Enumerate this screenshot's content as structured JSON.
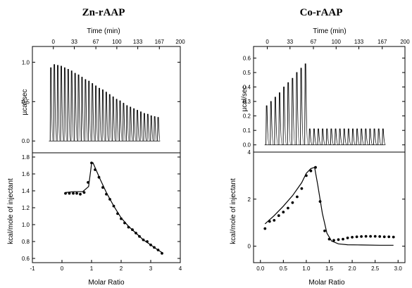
{
  "chart_data": [
    {
      "type": "line",
      "title": "Zn-rAAP",
      "top_panel": {
        "xlabel": "Time (min)",
        "ylabel": "µcal/sec",
        "xlim": [
          -33,
          200
        ],
        "ylim": [
          -0.15,
          1.2
        ],
        "xticks": [
          0,
          33,
          67,
          100,
          133,
          167,
          200
        ],
        "yticks": [
          0.0,
          0.5,
          1.0
        ],
        "ytick_labels": [
          "0.0",
          "0.5",
          "1.0"
        ],
        "injections": {
          "start_time": -5,
          "end_time": 164,
          "peak_heights": [
            0.93,
            0.97,
            0.96,
            0.95,
            0.93,
            0.91,
            0.89,
            0.86,
            0.84,
            0.81,
            0.78,
            0.76,
            0.73,
            0.7,
            0.67,
            0.65,
            0.62,
            0.59,
            0.56,
            0.53,
            0.51,
            0.48,
            0.45,
            0.43,
            0.41,
            0.39,
            0.37,
            0.35,
            0.34,
            0.32,
            0.31,
            0.3
          ]
        }
      },
      "bottom_panel": {
        "xlabel": "Molar Ratio",
        "ylabel": "kcal/mole of injectant",
        "xlim": [
          -1,
          4
        ],
        "ylim": [
          0.55,
          1.85
        ],
        "xticks": [
          -1,
          0,
          1,
          2,
          3,
          4
        ],
        "xtick_labels": [
          "-1",
          "0",
          "1",
          "2",
          "3",
          "4"
        ],
        "yticks": [
          0.6,
          0.8,
          1.0,
          1.2,
          1.4,
          1.6,
          1.8
        ],
        "ytick_labels": [
          "0.6",
          "0.8",
          "1.0",
          "1.2",
          "1.4",
          "1.6",
          "1.8"
        ],
        "points": {
          "x": [
            0.12,
            0.25,
            0.38,
            0.5,
            0.62,
            0.75,
            0.88,
            1.0,
            1.12,
            1.25,
            1.38,
            1.5,
            1.62,
            1.75,
            1.88,
            2.0,
            2.12,
            2.25,
            2.38,
            2.5,
            2.62,
            2.75,
            2.88,
            3.0,
            3.12,
            3.25,
            3.38
          ],
          "y": [
            1.37,
            1.37,
            1.37,
            1.37,
            1.36,
            1.38,
            1.5,
            1.73,
            1.65,
            1.56,
            1.44,
            1.36,
            1.3,
            1.22,
            1.13,
            1.07,
            1.02,
            0.97,
            0.94,
            0.9,
            0.86,
            0.82,
            0.8,
            0.76,
            0.73,
            0.7,
            0.66
          ]
        },
        "fit": {
          "x": [
            0.12,
            0.4,
            0.7,
            0.9,
            1.0,
            1.05,
            1.15,
            1.3,
            1.5,
            1.75,
            2.0,
            2.25,
            2.5,
            2.75,
            3.0,
            3.2,
            3.38
          ],
          "y": [
            1.38,
            1.39,
            1.39,
            1.45,
            1.72,
            1.73,
            1.65,
            1.53,
            1.38,
            1.22,
            1.08,
            0.98,
            0.9,
            0.82,
            0.76,
            0.71,
            0.67
          ]
        }
      }
    },
    {
      "type": "line",
      "title": "Co-rAAP",
      "top_panel": {
        "xlabel": "Time (min)",
        "ylabel": "µcal/sec",
        "xlim": [
          -20,
          200
        ],
        "ylim": [
          -0.05,
          0.68
        ],
        "xticks": [
          0,
          33,
          67,
          100,
          133,
          167,
          200
        ],
        "yticks": [
          0.0,
          0.1,
          0.2,
          0.3,
          0.4,
          0.5,
          0.6
        ],
        "ytick_labels": [
          "0.0",
          "0.1",
          "0.2",
          "0.3",
          "0.4",
          "0.5",
          "0.6"
        ],
        "injections": {
          "start_time": -2,
          "end_time": 167,
          "peak_heights": [
            0.27,
            0.3,
            0.33,
            0.36,
            0.4,
            0.43,
            0.46,
            0.5,
            0.53,
            0.56,
            0.11,
            0.11,
            0.11,
            0.11,
            0.11,
            0.11,
            0.11,
            0.11,
            0.11,
            0.11,
            0.11,
            0.11,
            0.11,
            0.11,
            0.11,
            0.11,
            0.11,
            0.11
          ]
        }
      },
      "bottom_panel": {
        "xlabel": "Molar Ratio",
        "ylabel": "kcal/mole of injectant",
        "xlim": [
          -0.15,
          3.15
        ],
        "ylim": [
          -0.7,
          4.0
        ],
        "xticks": [
          0.0,
          0.5,
          1.0,
          1.5,
          2.0,
          2.5,
          3.0
        ],
        "xtick_labels": [
          "0.0",
          "0.5",
          "1.0",
          "1.5",
          "2.0",
          "2.5",
          "3.0"
        ],
        "yticks": [
          0,
          2,
          4
        ],
        "ytick_labels": [
          "0",
          "2",
          "4"
        ],
        "points": {
          "x": [
            0.1,
            0.2,
            0.3,
            0.4,
            0.5,
            0.6,
            0.7,
            0.8,
            0.9,
            1.0,
            1.1,
            1.2,
            1.3,
            1.4,
            1.5,
            1.6,
            1.7,
            1.8,
            1.9,
            2.0,
            2.1,
            2.2,
            2.3,
            2.4,
            2.5,
            2.6,
            2.7,
            2.8,
            2.9
          ],
          "y": [
            0.75,
            1.05,
            1.1,
            1.3,
            1.45,
            1.62,
            1.85,
            2.1,
            2.45,
            3.0,
            3.2,
            3.35,
            1.9,
            0.65,
            0.3,
            0.25,
            0.28,
            0.3,
            0.35,
            0.38,
            0.4,
            0.41,
            0.42,
            0.42,
            0.42,
            0.41,
            0.4,
            0.4,
            0.39
          ]
        },
        "fit": {
          "x": [
            0.1,
            0.3,
            0.5,
            0.7,
            0.9,
            1.0,
            1.1,
            1.18,
            1.25,
            1.35,
            1.45,
            1.55,
            1.7,
            1.9,
            2.2,
            2.6,
            2.9
          ],
          "y": [
            0.95,
            1.3,
            1.7,
            2.15,
            2.7,
            3.1,
            3.3,
            3.35,
            2.6,
            1.4,
            0.55,
            0.22,
            0.1,
            0.06,
            0.05,
            0.04,
            0.04
          ]
        }
      }
    }
  ]
}
